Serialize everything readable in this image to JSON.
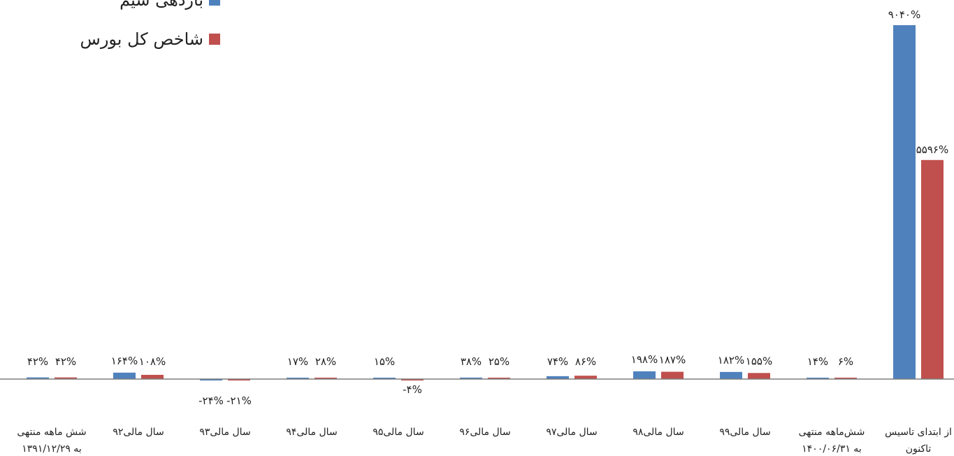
{
  "chart_data": {
    "type": "bar",
    "categories": [
      [
        "شش ماهه منتهی",
        "به ۱۳۹۱/۱۲/۲۹"
      ],
      [
        "سال مالی۹۲"
      ],
      [
        "سال مالی۹۳"
      ],
      [
        "سال مالی۹۴"
      ],
      [
        "سال مالی۹۵"
      ],
      [
        "سال مالی۹۶"
      ],
      [
        "سال مالی۹۷"
      ],
      [
        "سال مالی۹۸"
      ],
      [
        "سال مالی۹۹"
      ],
      [
        "شش‌ماهه منتهی",
        "به ۱۴۰۰/۰۶/۳۱"
      ],
      [
        "از ابتدای تاسیس",
        "تاکنون"
      ]
    ],
    "series": [
      {
        "name": "بازدهی سیم",
        "color": "#4F81BD",
        "values": [
          42,
          164,
          -24,
          17,
          15,
          38,
          74,
          198,
          182,
          14,
          9040
        ],
        "labels": [
          "۴۲%",
          "۱۶۴%",
          "-۲۴%",
          "۱۷%",
          "۱۵%",
          "۳۸%",
          "۷۴%",
          "۱۹۸%",
          "۱۸۲%",
          "۱۴%",
          "۹۰۴۰%"
        ]
      },
      {
        "name": "شاخص کل بورس",
        "color": "#C0504D",
        "values": [
          42,
          108,
          -21,
          28,
          -4,
          25,
          86,
          187,
          155,
          6,
          5596
        ],
        "labels": [
          "۴۲%",
          "۱۰۸%",
          "-۲۱%",
          "۲۸%",
          "-۴%",
          "۲۵%",
          "۸۶%",
          "۱۸۷%",
          "۱۵۵%",
          "۶%",
          "۵۵۹۶%"
        ]
      }
    ],
    "legend_position": "top-left",
    "grid": false
  }
}
